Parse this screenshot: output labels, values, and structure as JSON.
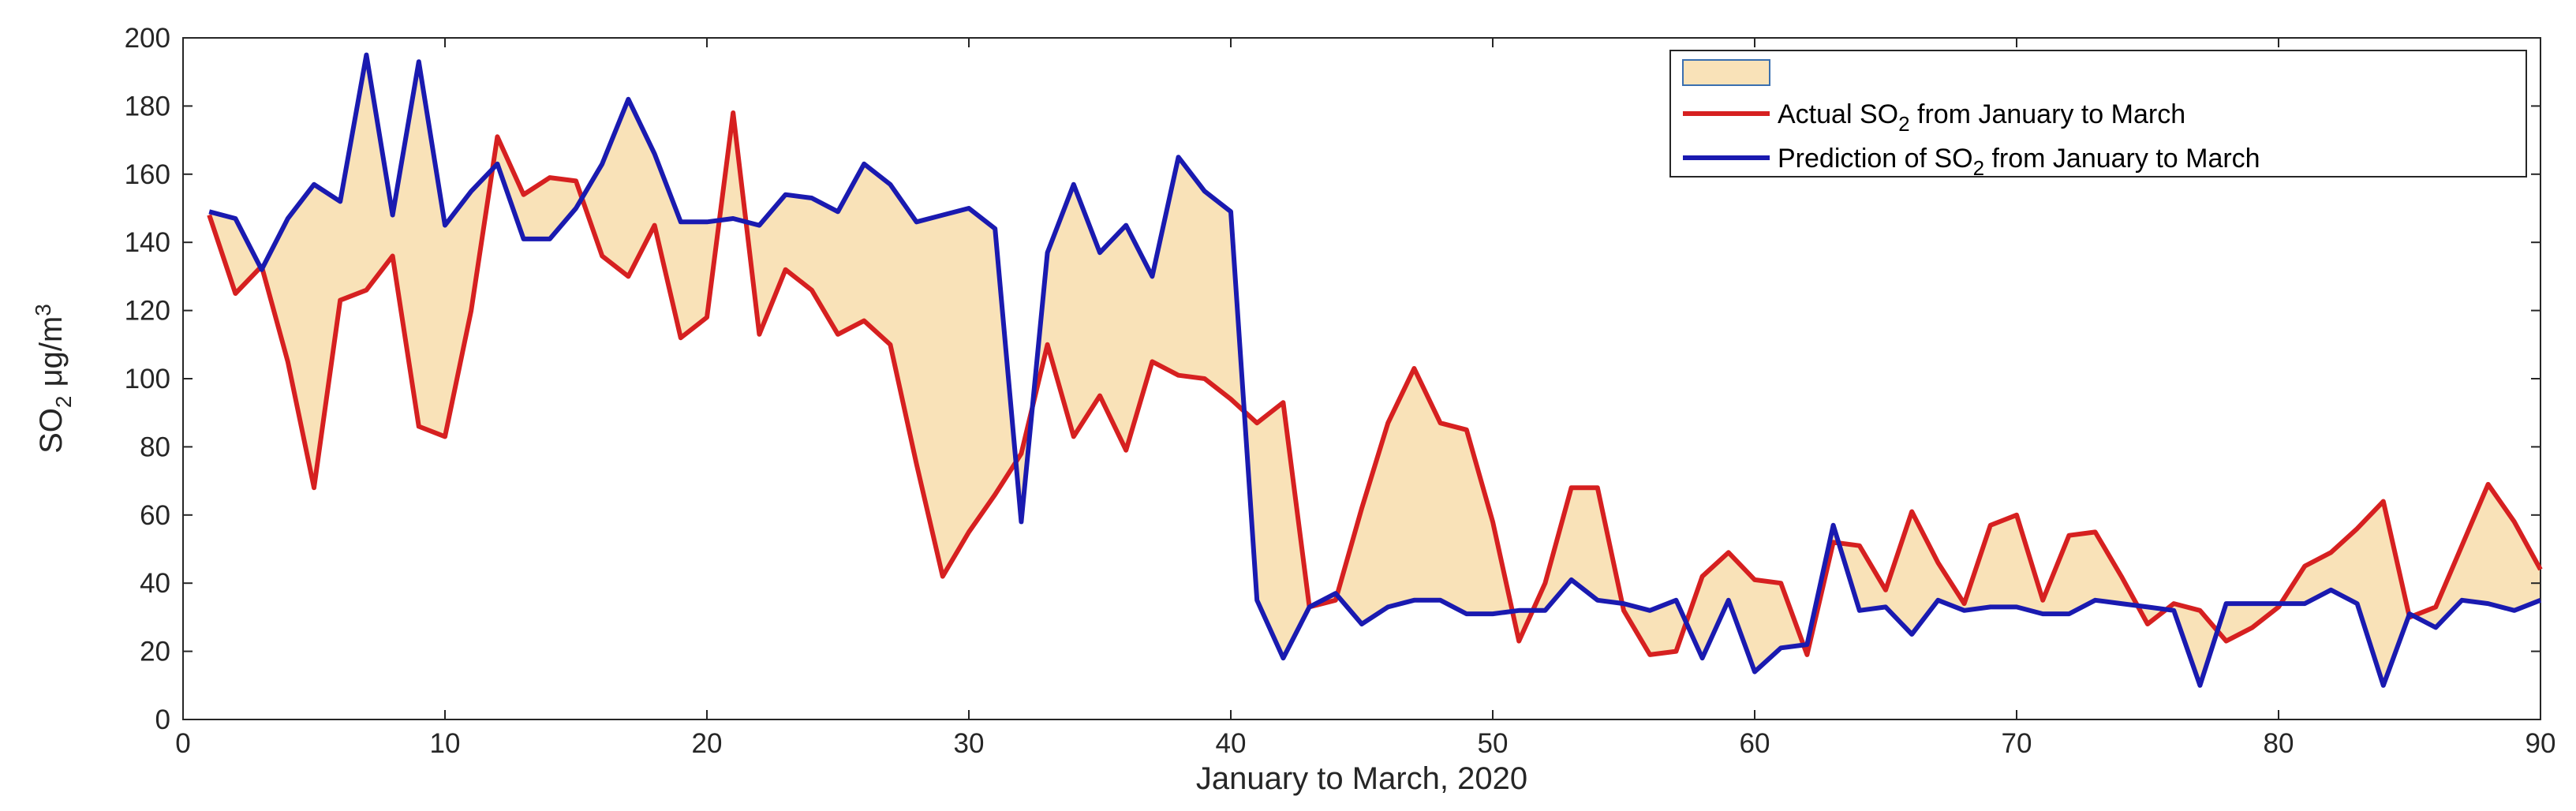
{
  "chart_data": {
    "type": "line",
    "xlabel": "January to March, 2020",
    "ylabel": "SO2 μg/m3",
    "xlim": [
      0,
      90
    ],
    "ylim": [
      0,
      200
    ],
    "x_ticks": [
      0,
      10,
      20,
      30,
      40,
      50,
      60,
      70,
      80,
      90
    ],
    "y_ticks": [
      0,
      20,
      40,
      60,
      80,
      100,
      120,
      140,
      160,
      180,
      200
    ],
    "grid": false,
    "legend_position": "top-right",
    "fill_between": {
      "name": "",
      "color": "#f9e2b8"
    },
    "x": [
      1,
      2,
      3,
      4,
      5,
      6,
      7,
      8,
      9,
      10,
      11,
      12,
      13,
      14,
      15,
      16,
      17,
      18,
      19,
      20,
      21,
      22,
      23,
      24,
      25,
      26,
      27,
      28,
      29,
      30,
      31,
      32,
      33,
      34,
      35,
      36,
      37,
      38,
      39,
      40,
      41,
      42,
      43,
      44,
      45,
      46,
      47,
      48,
      49,
      50,
      51,
      52,
      53,
      54,
      55,
      56,
      57,
      58,
      59,
      60,
      61,
      62,
      63,
      64,
      65,
      66,
      67,
      68,
      69,
      70,
      71,
      72,
      73,
      74,
      75,
      76,
      77,
      78,
      79,
      80,
      81,
      82,
      83,
      84,
      85,
      86,
      87,
      88,
      89,
      90
    ],
    "series": [
      {
        "name": "Actual SO2 from January to March",
        "color": "#d62020",
        "values": [
          148,
          125,
          133,
          105,
          68,
          123,
          126,
          136,
          86,
          83,
          120,
          171,
          154,
          159,
          158,
          136,
          130,
          145,
          112,
          118,
          178,
          113,
          132,
          126,
          113,
          117,
          110,
          75,
          42,
          55,
          66,
          78,
          110,
          83,
          95,
          79,
          105,
          101,
          100,
          94,
          87,
          93,
          33,
          35,
          62,
          87,
          103,
          87,
          85,
          58,
          23,
          40,
          68,
          68,
          32,
          19,
          20,
          42,
          49,
          41,
          40,
          19,
          52,
          51,
          38,
          61,
          46,
          34,
          57,
          60,
          35,
          54,
          55,
          42,
          28,
          34,
          32,
          23,
          27,
          33,
          45,
          49,
          56,
          64,
          30,
          33,
          51,
          69,
          58,
          44
        ]
      },
      {
        "name": "Prediction of SO2 from January to March",
        "color": "#1a1ab0",
        "values": [
          149,
          147,
          132,
          147,
          157,
          152,
          195,
          148,
          193,
          145,
          155,
          163,
          141,
          141,
          150,
          163,
          182,
          166,
          146,
          146,
          147,
          145,
          154,
          153,
          149,
          163,
          157,
          146,
          148,
          150,
          144,
          58,
          137,
          157,
          137,
          145,
          130,
          165,
          155,
          149,
          35,
          18,
          33,
          37,
          28,
          33,
          35,
          35,
          31,
          31,
          32,
          32,
          41,
          35,
          34,
          32,
          35,
          18,
          35,
          14,
          21,
          22,
          57,
          32,
          33,
          25,
          35,
          32,
          33,
          33,
          31,
          31,
          35,
          34,
          33,
          32,
          10,
          34,
          34,
          34,
          34,
          38,
          34,
          10,
          31,
          27,
          35,
          34,
          32,
          35
        ]
      }
    ]
  }
}
